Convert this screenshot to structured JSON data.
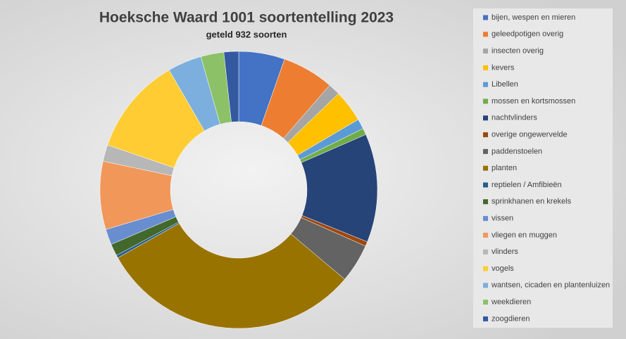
{
  "chart_data": {
    "type": "donut",
    "title": "Hoeksche Waard 1001 soortentelling 2023",
    "subtitle": "geteld 932 soorten",
    "categories": [
      "bijen, wespen en mieren",
      "geleedpotigen overig",
      "insecten overig",
      "kevers",
      "Libellen",
      "mossen en kortsmossen",
      "nachtvlinders",
      "overige ongewervelde",
      "paddenstoelen",
      "planten",
      "reptielen / Amfibieën",
      "sprinkhanen en krekels",
      "vissen",
      "vliegen en muggen",
      "vlinders",
      "vogels",
      "wantsen, cicaden en plantenluizen",
      "weekdieren",
      "zoogdieren"
    ],
    "values": [
      50,
      56,
      13,
      35,
      11,
      7,
      118,
      5,
      42,
      286,
      3,
      13,
      17,
      74,
      18,
      106,
      37,
      25,
      16
    ],
    "colors": [
      "#4472c4",
      "#ed7d31",
      "#a5a5a5",
      "#ffc000",
      "#5b9bd5",
      "#70ad47",
      "#264478",
      "#9e480e",
      "#636363",
      "#997300",
      "#255e91",
      "#43682b",
      "#698ed0",
      "#f1975a",
      "#b7b7b7",
      "#ffcd33",
      "#7cafdd",
      "#8cc168",
      "#335aa1"
    ],
    "legend": "right"
  }
}
